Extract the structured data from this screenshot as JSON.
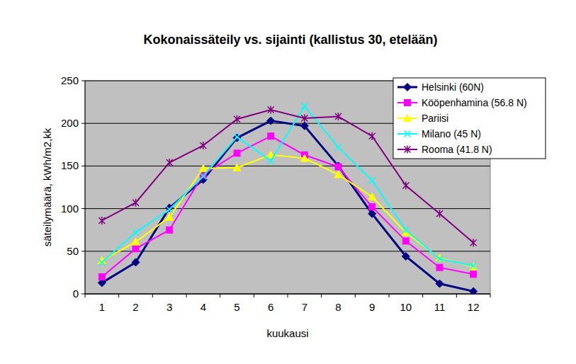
{
  "chart_data": {
    "type": "line",
    "title": "Kokonaissäteily vs. sijainti (kallistus 30, etelään)",
    "x_label": "kuukausi",
    "y_label": "säteilymäärä, kWh/m2,kk",
    "categories": [
      "1",
      "2",
      "3",
      "4",
      "5",
      "6",
      "7",
      "8",
      "9",
      "10",
      "11",
      "12"
    ],
    "series": [
      {
        "name": "Helsinki (60N)",
        "color": "#000080",
        "marker": "diamond",
        "values": [
          13,
          37,
          101,
          134,
          183,
          203,
          197,
          150,
          94,
          44,
          12,
          3
        ]
      },
      {
        "name": "Kööpenhamina (56.8 N)",
        "color": "#ff00ff",
        "marker": "square",
        "values": [
          20,
          53,
          75,
          140,
          165,
          185,
          163,
          149,
          102,
          62,
          31,
          23
        ]
      },
      {
        "name": "Pariisi",
        "color": "#ffff00",
        "marker": "triangle",
        "values": [
          39,
          61,
          90,
          147,
          148,
          163,
          159,
          140,
          114,
          72,
          42,
          32
        ]
      },
      {
        "name": "Milano (45 N)",
        "color": "#00ffff",
        "marker": "x",
        "values": [
          37,
          72,
          99,
          138,
          184,
          156,
          220,
          172,
          133,
          75,
          41,
          33
        ]
      },
      {
        "name": "Rooma (41.8 N)",
        "color": "#800080",
        "marker": "star",
        "values": [
          86,
          107,
          154,
          174,
          205,
          216,
          206,
          208,
          185,
          127,
          94,
          60
        ]
      }
    ],
    "ylim": [
      0,
      250
    ],
    "yticks": [
      0,
      50,
      100,
      150,
      200,
      250
    ],
    "grid": true,
    "legend": "top-right"
  }
}
